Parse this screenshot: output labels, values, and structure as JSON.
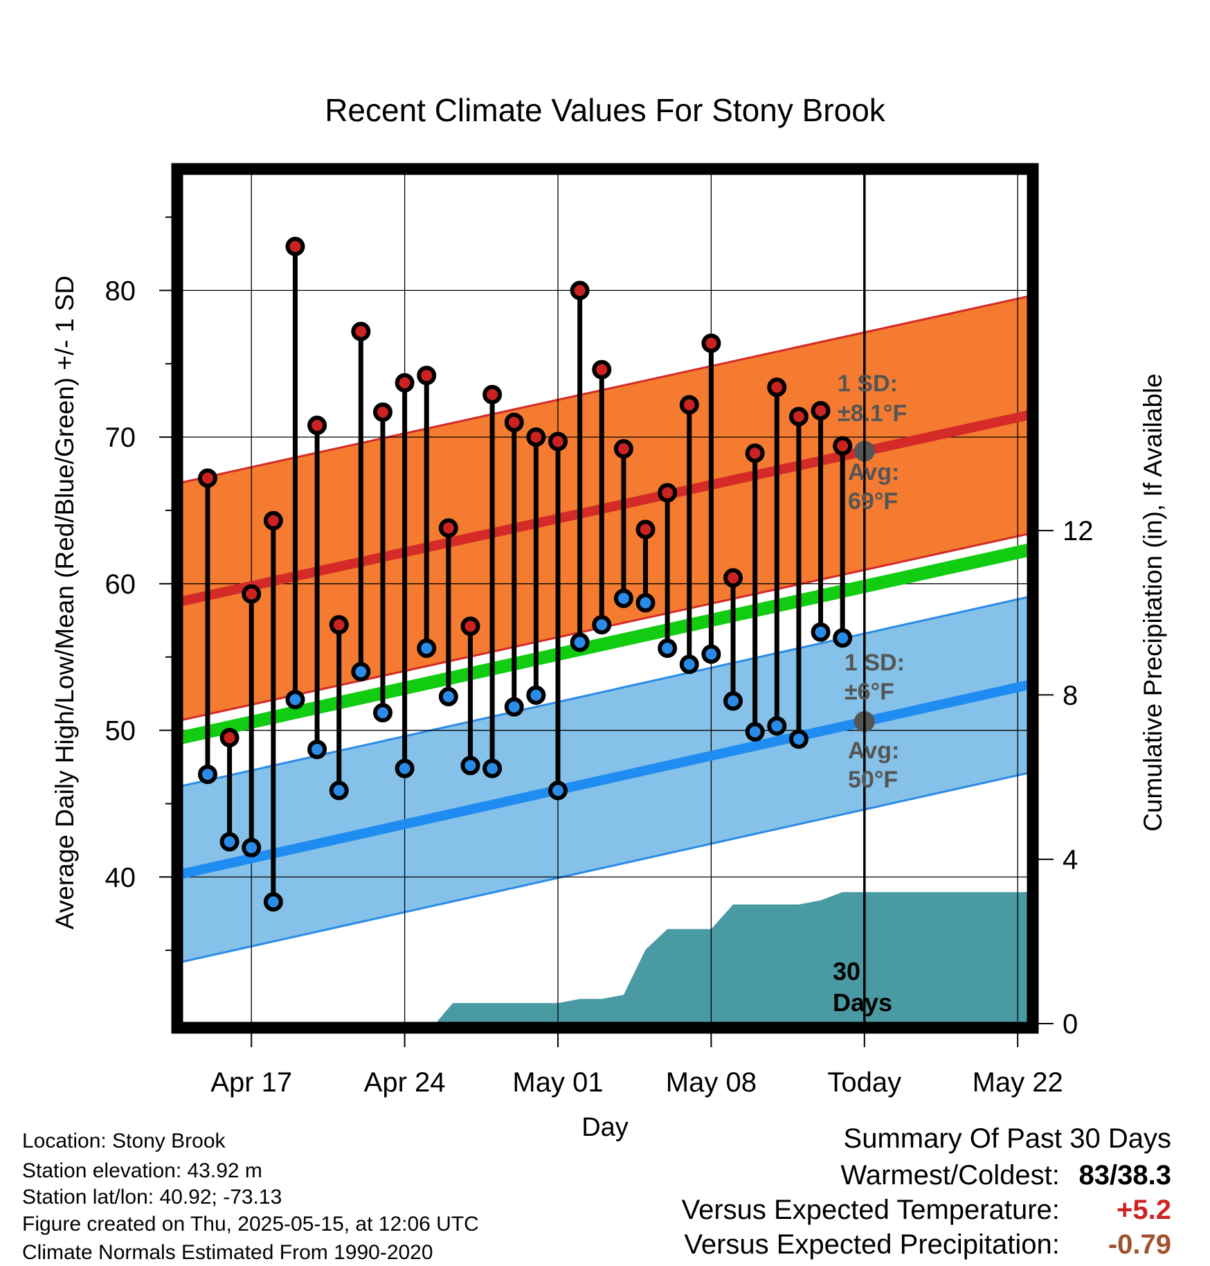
{
  "chart_data": {
    "type": "line",
    "title": "Recent Climate Values For Stony Brook",
    "xlabel": "Day",
    "ylabel": "Average Daily High/Low/Mean (Red/Blue/Green) +/- 1 SD",
    "y2label": "Cumulative Precipitation (in), If Available",
    "ylim": [
      30,
      88
    ],
    "y2lim": [
      0,
      20.7
    ],
    "xlim": [
      -3.2,
      35.5
    ],
    "x_tick_labels": [
      {
        "x": 0,
        "label": "Apr 17"
      },
      {
        "x": 7,
        "label": "Apr 24"
      },
      {
        "x": 14,
        "label": "May 01"
      },
      {
        "x": 21,
        "label": "May 08"
      },
      {
        "x": 28,
        "label": "Today"
      },
      {
        "x": 35,
        "label": "May 22"
      }
    ],
    "y_ticks": [
      40,
      50,
      60,
      70,
      80
    ],
    "y2_ticks": [
      0,
      4,
      8,
      12
    ],
    "grid": true,
    "day_x": [
      -2,
      -1,
      0,
      1,
      2,
      3,
      4,
      5,
      6,
      7,
      8,
      9,
      10,
      11,
      12,
      13,
      14,
      15,
      16,
      17,
      18,
      19,
      20,
      21,
      22,
      23,
      24,
      25,
      26,
      27
    ],
    "series": [
      {
        "name": "High",
        "color": "#cc2222",
        "values": [
          67.2,
          49.5,
          59.3,
          64.3,
          83.0,
          70.8,
          57.2,
          77.2,
          71.7,
          73.7,
          74.2,
          63.8,
          57.1,
          72.9,
          71.0,
          70.0,
          69.7,
          80.0,
          74.6,
          69.2,
          63.7,
          66.2,
          72.2,
          76.4,
          60.4,
          68.9,
          73.4,
          71.4,
          71.8,
          69.4
        ]
      },
      {
        "name": "Low",
        "color": "#2a8be8",
        "values": [
          47.0,
          42.4,
          42.0,
          38.3,
          52.1,
          48.7,
          45.9,
          54.0,
          51.2,
          47.4,
          55.6,
          52.3,
          47.6,
          47.4,
          51.6,
          52.4,
          45.9,
          56.0,
          57.2,
          59.0,
          58.7,
          55.6,
          54.5,
          55.2,
          52.0,
          49.9,
          50.3,
          49.4,
          56.7,
          56.3
        ]
      }
    ],
    "normals": {
      "high_avg": [
        58.8,
        71.5
      ],
      "high_sd": 8.1,
      "low_avg": [
        40.2,
        53.1
      ],
      "low_sd": 6,
      "mean_avg": [
        49.5,
        62.3
      ]
    },
    "precip": {
      "color": "#4a9aa4",
      "points": [
        [
          -3.2,
          0
        ],
        [
          8.4,
          0
        ],
        [
          9.2,
          0.5
        ],
        [
          12,
          0.5
        ],
        [
          14,
          0.5
        ],
        [
          15,
          0.6
        ],
        [
          16,
          0.6
        ],
        [
          17,
          0.7
        ],
        [
          18,
          1.8
        ],
        [
          19,
          2.3
        ],
        [
          20,
          2.3
        ],
        [
          21,
          2.3
        ],
        [
          22,
          2.9
        ],
        [
          23,
          2.9
        ],
        [
          24,
          2.9
        ],
        [
          25,
          2.9
        ],
        [
          26,
          3.0
        ],
        [
          27,
          3.2
        ],
        [
          35.5,
          3.2
        ]
      ]
    },
    "today_x": 28,
    "annotations": {
      "high_sd_label_1": "1 SD:",
      "high_sd_label_2": "±8.1°F",
      "high_avg_label_1": "Avg:",
      "high_avg_label_2": "69°F",
      "low_sd_label_1": "1 SD:",
      "low_sd_label_2": "±6°F",
      "low_avg_label_1": "Avg:",
      "low_avg_label_2": "50°F",
      "days_label_1": "30",
      "days_label_2": "Days"
    }
  },
  "footer": {
    "location": "Location: Stony Brook",
    "elevation": "Station elevation: 43.92 m",
    "latlon": "Station lat/lon: 40.92; -73.13",
    "created": "Figure created on Thu, 2025-05-15, at 12:06 UTC",
    "normals": "Climate Normals Estimated From 1990-2020"
  },
  "summary": {
    "title": "Summary Of Past 30 Days",
    "warm_cold_label": "Warmest/Coldest:",
    "warm_cold_value": "83/38.3",
    "temp_label": "Versus Expected Temperature:",
    "temp_value": "+5.2",
    "temp_color": "#cc2222",
    "precip_label": "Versus Expected Precipitation:",
    "precip_value": "-0.79",
    "precip_color": "#a0522d"
  }
}
